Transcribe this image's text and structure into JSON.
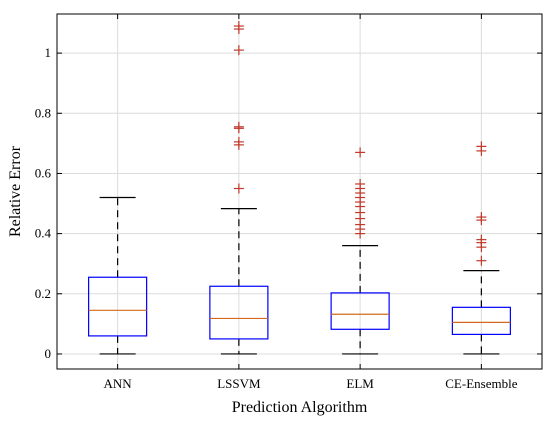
{
  "chart_data": {
    "type": "boxplot",
    "title": "",
    "xlabel": "Prediction Algorithm",
    "ylabel": "Relative Error",
    "ylim": [
      -0.05,
      1.13
    ],
    "yticks": [
      0,
      0.2,
      0.4,
      0.6,
      0.8,
      1
    ],
    "ytick_labels": [
      "0",
      "0.2",
      "0.4",
      "0.6",
      "0.8",
      "1"
    ],
    "grid": true,
    "categories": [
      "ANN",
      "LSSVM",
      "ELM",
      "CE-Ensemble"
    ],
    "boxes": [
      {
        "name": "ANN",
        "whisker_low": 0.0,
        "q1": 0.06,
        "median": 0.145,
        "q3": 0.255,
        "whisker_high": 0.52,
        "outliers": []
      },
      {
        "name": "LSSVM",
        "whisker_low": 0.0,
        "q1": 0.05,
        "median": 0.118,
        "q3": 0.225,
        "whisker_high": 0.483,
        "outliers": [
          0.55,
          0.695,
          0.705,
          0.75,
          0.755,
          1.01,
          1.08,
          1.09
        ]
      },
      {
        "name": "ELM",
        "whisker_low": 0.0,
        "q1": 0.082,
        "median": 0.132,
        "q3": 0.203,
        "whisker_high": 0.36,
        "outliers": [
          0.4,
          0.415,
          0.43,
          0.45,
          0.47,
          0.49,
          0.505,
          0.52,
          0.535,
          0.55,
          0.565,
          0.67
        ]
      },
      {
        "name": "CE-Ensemble",
        "whisker_low": 0.0,
        "q1": 0.065,
        "median": 0.105,
        "q3": 0.155,
        "whisker_high": 0.277,
        "outliers": [
          0.31,
          0.355,
          0.37,
          0.38,
          0.445,
          0.455,
          0.675,
          0.69
        ]
      }
    ],
    "colors": {
      "box": "#0000ff",
      "median": "#d2691e",
      "outlier": "#c0392b",
      "whisker": "#000000",
      "grid": "#dcdcdc"
    }
  }
}
